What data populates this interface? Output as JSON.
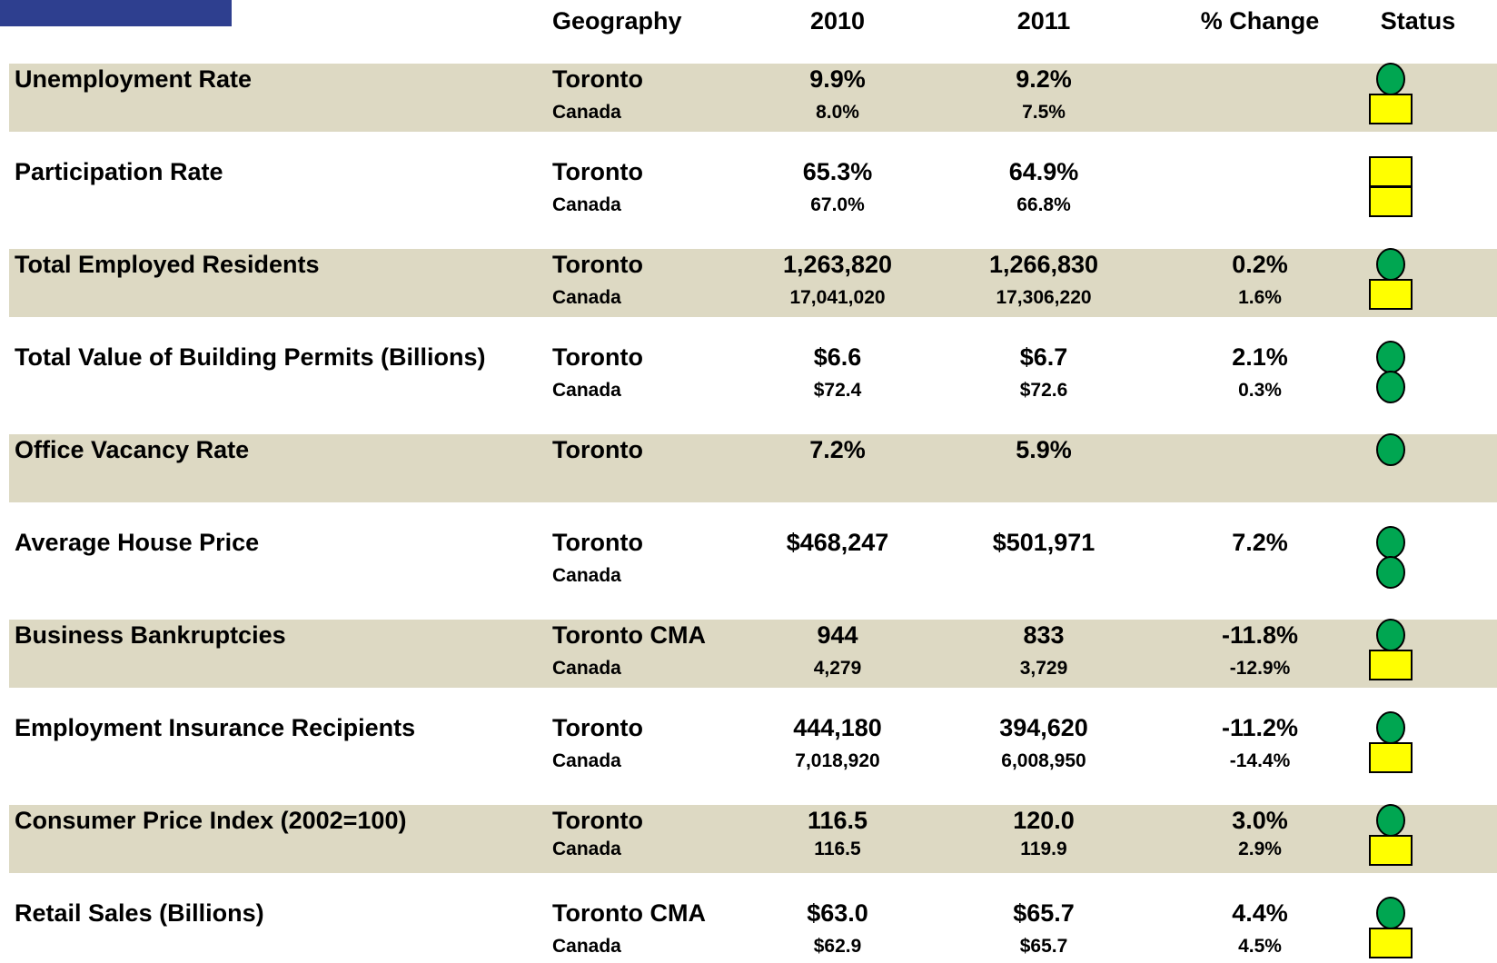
{
  "header": [
    "Geography",
    "2010",
    "2011",
    "% Change",
    "Status"
  ],
  "rows": [
    {
      "label": "Unemployment Rate",
      "toronto": [
        "Toronto",
        "9.9%",
        "9.2%",
        null
      ],
      "canada": [
        "Canada",
        "8.0%",
        "7.5%",
        null
      ],
      "status": [
        "#00a651",
        "#ffff00"
      ]
    },
    {
      "label": "Participation Rate",
      "toronto": [
        "Toronto",
        "65.3%",
        "64.9%",
        null
      ],
      "canada": [
        "Canada",
        "67.0%",
        "66.8%",
        null
      ],
      "status": [
        "#ffff00",
        "#ffff00"
      ]
    },
    {
      "label": "Total Employed Residents",
      "toronto": [
        "Toronto",
        "1,263,820",
        "1,266,830",
        "0.2%"
      ],
      "canada": [
        "Canada",
        "17,041,020",
        "17,306,220",
        "1.6%"
      ],
      "status": [
        "#00a651",
        "#ffff00"
      ]
    },
    {
      "label": "Total Value of Building Permits (Billions)",
      "toronto": [
        "Toronto",
        "$6.6",
        "$6.7",
        "2.1%"
      ],
      "canada": [
        "Canada",
        "$72.4",
        "$72.6",
        "0.3%"
      ],
      "status": [
        "#00a651",
        "#00a651"
      ]
    },
    {
      "label": "Office Vacancy Rate",
      "toronto": [
        "Toronto",
        "7.2%",
        "5.9%",
        null
      ],
      "canada": null,
      "status": [
        "#00a651"
      ]
    },
    {
      "label": "Average House Price",
      "toronto": [
        "Toronto",
        "$468,247",
        "$501,971",
        "7.2%"
      ],
      "canada": [
        "Canada",
        null,
        null,
        null
      ],
      "status": [
        "#00a651",
        "#00a651"
      ]
    },
    {
      "label": "Business Bankruptcies",
      "toronto": [
        "Toronto CMA",
        "944",
        "833",
        "-11.8%"
      ],
      "canada": [
        "Canada",
        "4,279",
        "3,729",
        "-12.9%"
      ],
      "status": [
        "#00a651",
        "#ffff00"
      ]
    },
    {
      "label": "Employment Insurance Recipients",
      "toronto": [
        "Toronto",
        "444,180",
        "394,620",
        "-11.2%"
      ],
      "canada": [
        "Canada",
        "7,018,920",
        "6,008,950",
        "-14.4%"
      ],
      "status": [
        "#00a651",
        "#ffff00"
      ]
    },
    {
      "label": "Consumer Price Index (2002=100)",
      "toronto": [
        "Toronto",
        "116.5",
        "120.0",
        "3.0%"
      ],
      "canada": [
        "Canada",
        "116.5",
        "119.9",
        "2.9%"
      ],
      "status": [
        "#00a651",
        "#ffff00"
      ]
    },
    {
      "label": "Retail Sales  (Billions)",
      "toronto": [
        "Toronto CMA",
        "$63.0",
        "$65.7",
        "4.4%"
      ],
      "canada": [
        "Canada",
        "$62.9",
        "$65.7",
        "4.5%"
      ],
      "status": [
        "#00a651",
        "#ffff00"
      ]
    }
  ]
}
